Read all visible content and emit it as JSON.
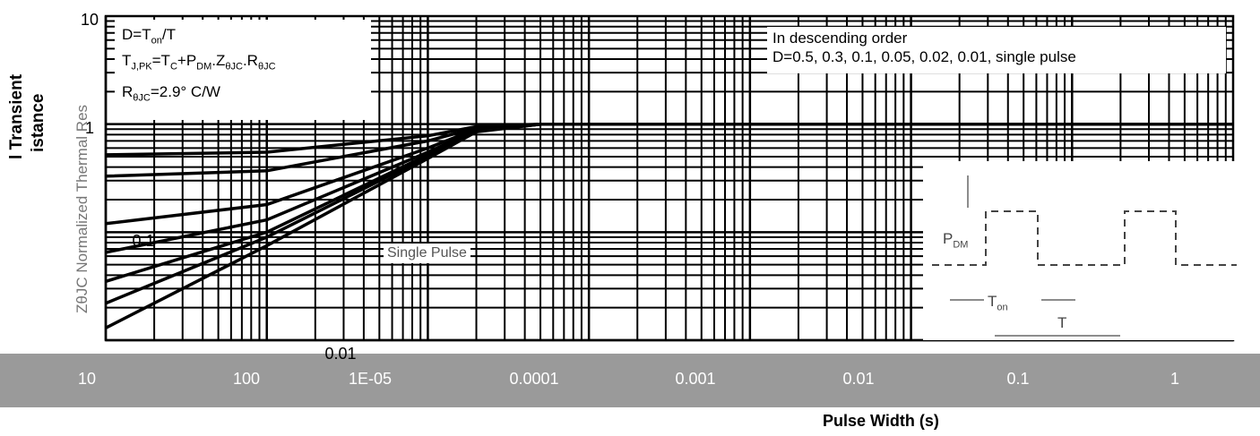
{
  "chart_data": {
    "type": "line",
    "xscale": "log",
    "yscale": "log",
    "xlabel": "Pulse Width (s)",
    "ylabel_line1": "l Transient",
    "ylabel_line2": "istance",
    "ylabel_overlay": "ZθJC Normalized Thermal Res",
    "x_tick_labels": [
      "10",
      "100",
      "1E-05",
      "0.0001",
      "0.001",
      "0.01",
      "0.1",
      "1"
    ],
    "y_tick_labels": [
      "10",
      "1",
      "0.1",
      "0.01"
    ],
    "xlim": [
      1e-06,
      10
    ],
    "ylim": [
      0.01,
      10
    ],
    "grid": true,
    "series_order_note": "In descending order",
    "duty_cycles": "D=0.5, 0.3, 0.1, 0.05, 0.02, 0.01, single pulse",
    "series": [
      {
        "name": "D=0.5",
        "x": [
          1e-06,
          1e-05,
          0.0001,
          0.0002,
          0.0005,
          0.001,
          0.01,
          0.1,
          1,
          10
        ],
        "y": [
          0.52,
          0.55,
          0.78,
          0.95,
          1.0,
          1.0,
          1.0,
          1.0,
          1.0,
          1.0
        ]
      },
      {
        "name": "D=0.3",
        "x": [
          1e-06,
          1e-05,
          0.0001,
          0.0002,
          0.0005,
          0.001,
          0.01,
          0.1,
          1,
          10
        ],
        "y": [
          0.33,
          0.37,
          0.7,
          0.92,
          1.0,
          1.0,
          1.0,
          1.0,
          1.0,
          1.0
        ]
      },
      {
        "name": "D=0.1",
        "x": [
          1e-06,
          1e-05,
          0.0001,
          0.0002,
          0.0005,
          0.001,
          0.01,
          0.1,
          1,
          10
        ],
        "y": [
          0.12,
          0.18,
          0.6,
          0.9,
          1.0,
          1.0,
          1.0,
          1.0,
          1.0,
          1.0
        ]
      },
      {
        "name": "D=0.05",
        "x": [
          1e-06,
          1e-05,
          0.0001,
          0.0002,
          0.0005,
          0.001,
          0.01,
          0.1,
          1,
          10
        ],
        "y": [
          0.065,
          0.13,
          0.55,
          0.88,
          1.0,
          1.0,
          1.0,
          1.0,
          1.0,
          1.0
        ]
      },
      {
        "name": "D=0.02",
        "x": [
          1e-06,
          1e-05,
          0.0001,
          0.0002,
          0.0005,
          0.001,
          0.01,
          0.1,
          1,
          10
        ],
        "y": [
          0.035,
          0.1,
          0.52,
          0.87,
          1.0,
          1.0,
          1.0,
          1.0,
          1.0,
          1.0
        ]
      },
      {
        "name": "D=0.01",
        "x": [
          1e-06,
          1e-05,
          0.0001,
          0.0002,
          0.0005,
          0.001,
          0.01,
          0.1,
          1,
          10
        ],
        "y": [
          0.022,
          0.09,
          0.5,
          0.86,
          1.0,
          1.0,
          1.0,
          1.0,
          1.0,
          1.0
        ]
      },
      {
        "name": "single pulse",
        "x": [
          1e-06,
          1e-05,
          0.0001,
          0.0002,
          0.0005,
          0.001,
          0.01,
          0.1,
          1,
          10
        ],
        "y": [
          0.013,
          0.075,
          0.48,
          0.85,
          1.0,
          1.0,
          1.0,
          1.0,
          1.0,
          1.0
        ]
      }
    ],
    "annotations": {
      "duty_formula": "D=T",
      "duty_formula_sub": "on",
      "duty_formula_tail": "/T",
      "tj_formula_a": "T",
      "tj_formula_a_sub": "J,PK",
      "tj_formula_b": "=T",
      "tj_formula_b_sub": "C",
      "tj_formula_c": "+P",
      "tj_formula_c_sub": "DM",
      "tj_formula_d": ".Z",
      "tj_formula_d_sub": "θJC",
      "tj_formula_e": ".R",
      "tj_formula_e_sub": "θJC",
      "rth_a": "R",
      "rth_sub": "θJC",
      "rth_value": "=2.9° C/W",
      "single_pulse_label": "Single Pulse",
      "pdm_label": "P",
      "pdm_sub": "DM",
      "ton_label": "T",
      "ton_sub": "on",
      "t_label": "T"
    },
    "colors": {
      "curve": "#000000",
      "grid": "#000000",
      "axis_band": "#9a9a9a"
    }
  }
}
